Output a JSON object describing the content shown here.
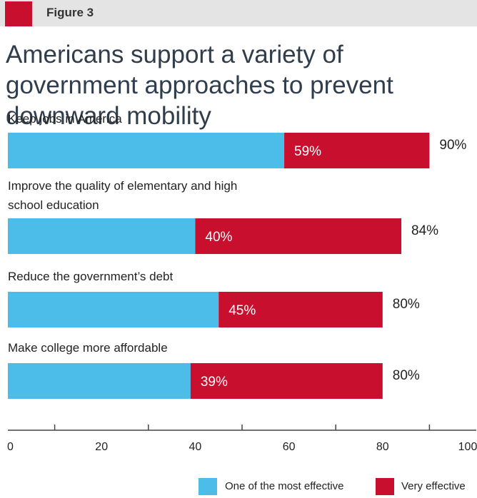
{
  "header": {
    "figure_label": "Figure 3"
  },
  "colors": {
    "brand_red": "#c8102e",
    "series_blue": "#4bbde8",
    "series_red": "#c8102e",
    "axis": "#444444"
  },
  "chart_data": {
    "type": "bar",
    "orientation": "horizontal",
    "stacked": true,
    "title": "Americans support a variety of government approaches to prevent downward mobility",
    "categories": [
      "Keep jobs in America",
      "Improve the quality of elementary and high school education",
      "Reduce the government’s debt",
      "Make college more affordable"
    ],
    "series": [
      {
        "name": "One of the most effective",
        "color": "#4bbde8",
        "values": [
          59,
          40,
          45,
          39
        ]
      },
      {
        "name": "Very effective",
        "color": "#c8102e",
        "values": [
          31,
          44,
          35,
          41
        ]
      }
    ],
    "segment_labels": [
      "59%",
      "40%",
      "45%",
      "39%"
    ],
    "total_labels": [
      "90%",
      "84%",
      "80%",
      "80%"
    ],
    "xlim": [
      0,
      100
    ],
    "xticks": [
      0,
      20,
      40,
      60,
      80,
      100
    ],
    "grid": false,
    "legend_position": "bottom-right"
  }
}
